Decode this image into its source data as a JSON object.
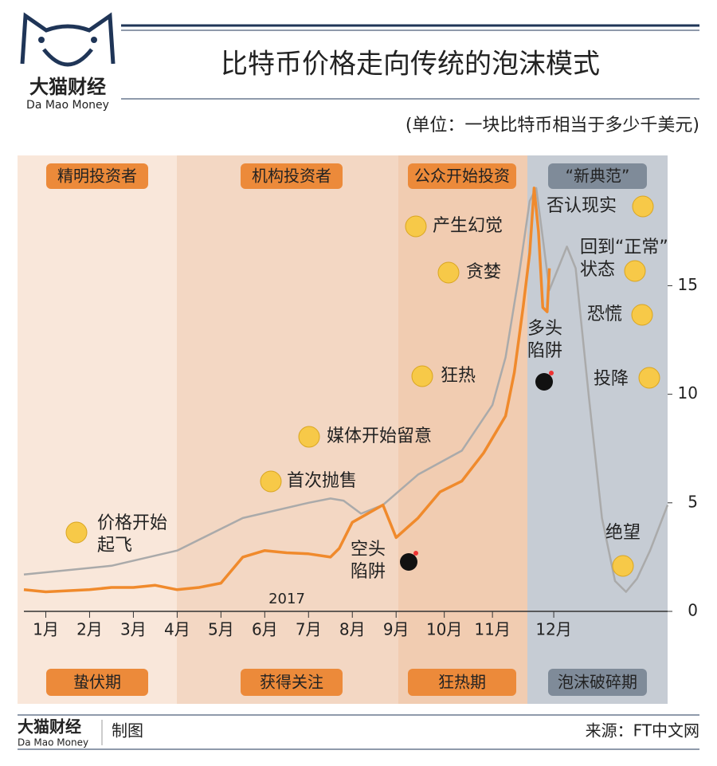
{
  "brand": {
    "name": "大猫财经",
    "latin": "Da Mao Money"
  },
  "chart_data": {
    "type": "line",
    "title": "比特币价格走向传统的泡沫模式",
    "subtitle": "(单位：一块比特币相当于多少千美元)",
    "year_label": "2017",
    "phases": {
      "top": [
        "精明投资者",
        "机构投资者",
        "公众开始投资",
        "“新典范”"
      ],
      "bottom": [
        "蛰伏期",
        "获得关注",
        "狂热期",
        "泡沫破碎期"
      ]
    },
    "annotations": [
      {
        "text": [
          "价格开始",
          "起飞"
        ]
      },
      {
        "text": [
          "首次抛售"
        ]
      },
      {
        "text": [
          "媒体开始留意"
        ]
      },
      {
        "text": [
          "空头",
          "陷阱"
        ]
      },
      {
        "text": [
          "狂热"
        ]
      },
      {
        "text": [
          "贪婪"
        ]
      },
      {
        "text": [
          "产生幻觉"
        ]
      },
      {
        "text": [
          "多头",
          "陷阱"
        ]
      },
      {
        "text": [
          "否认现实"
        ]
      },
      {
        "text": [
          "回到“正常”",
          "状态"
        ]
      },
      {
        "text": [
          "恐慌"
        ]
      },
      {
        "text": [
          "投降"
        ]
      },
      {
        "text": [
          "绝望"
        ]
      }
    ],
    "xlim": [
      0,
      14.7
    ],
    "xticks": [
      {
        "value": 0.5,
        "label": "1月"
      },
      {
        "value": 1.5,
        "label": "2月"
      },
      {
        "value": 2.5,
        "label": "3月"
      },
      {
        "value": 3.5,
        "label": "4月"
      },
      {
        "value": 4.5,
        "label": "5月"
      },
      {
        "value": 5.5,
        "label": "6月"
      },
      {
        "value": 6.5,
        "label": "7月"
      },
      {
        "value": 7.5,
        "label": "8月"
      },
      {
        "value": 8.5,
        "label": "9月"
      },
      {
        "value": 9.6,
        "label": "10月"
      },
      {
        "value": 10.7,
        "label": "11月"
      },
      {
        "value": 12.1,
        "label": "12月"
      }
    ],
    "ylim": [
      0,
      21
    ],
    "yticks": [
      0,
      5,
      10,
      15
    ],
    "series": [
      {
        "color": "#aaaaaa",
        "x": [
          0,
          2,
          3.5,
          5,
          6.5,
          7,
          7.3,
          7.7,
          8.2,
          9,
          10,
          10.7,
          11,
          11.3,
          11.55,
          11.7,
          11.85,
          12.0,
          12.2,
          12.4,
          12.6,
          12.9,
          13.2,
          13.5,
          13.75,
          14.0,
          14.3,
          14.7
        ],
        "values": [
          1.7,
          2.1,
          2.8,
          4.3,
          5.0,
          5.2,
          5.1,
          4.5,
          4.9,
          6.3,
          7.4,
          9.5,
          11.7,
          15.4,
          18.9,
          19.5,
          17.2,
          14.8,
          15.8,
          16.8,
          15.8,
          9.9,
          4.3,
          1.4,
          0.9,
          1.5,
          2.8,
          4.9
        ]
      },
      {
        "color": "#f08a2c",
        "x": [
          0,
          0.5,
          1,
          1.5,
          2,
          2.5,
          3,
          3.5,
          4,
          4.5,
          5,
          5.5,
          6,
          6.5,
          7,
          7.2,
          7.5,
          8.2,
          8.5,
          9,
          9.5,
          10,
          10.5,
          11,
          11.2,
          11.4,
          11.55,
          11.65,
          11.75,
          11.85,
          11.95,
          12.0
        ],
        "values": [
          1.0,
          0.9,
          0.95,
          1.0,
          1.1,
          1.1,
          1.2,
          1.0,
          1.1,
          1.3,
          2.5,
          2.8,
          2.7,
          2.65,
          2.5,
          2.9,
          4.1,
          4.9,
          3.4,
          4.3,
          5.5,
          6.0,
          7.3,
          9.0,
          11.0,
          14.0,
          16.5,
          19.5,
          17.5,
          14.0,
          13.8,
          15.8
        ]
      }
    ]
  },
  "footer": {
    "brand": "大猫财经",
    "latin": "Da Mao Money",
    "made": "制图",
    "source": "来源：FT中文网"
  }
}
